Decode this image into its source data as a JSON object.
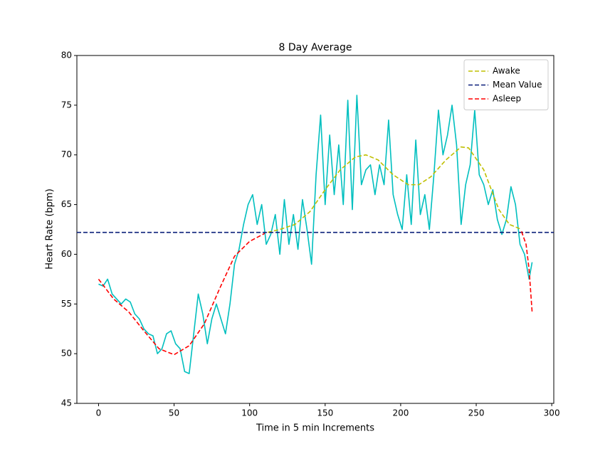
{
  "chart_data": {
    "type": "line",
    "title": "8 Day Average",
    "xlabel": "Time in 5 min Increments",
    "ylabel": "Heart Rate (bpm)",
    "xlim": [
      -14.35,
      301.35
    ],
    "ylim": [
      45,
      80
    ],
    "xticks": [
      0,
      50,
      100,
      150,
      200,
      250,
      300
    ],
    "yticks": [
      45,
      50,
      55,
      60,
      65,
      70,
      75,
      80
    ],
    "grid": false,
    "legend": "upper right",
    "series": [
      {
        "color": "#00bfbf",
        "style": "solid",
        "x": [
          0,
          3,
          6,
          9,
          12,
          15,
          18,
          21,
          24,
          27,
          30,
          33,
          36,
          39,
          42,
          45,
          48,
          51,
          54,
          57,
          60,
          63,
          66,
          69,
          72,
          75,
          78,
          81,
          84,
          87,
          90,
          93,
          96,
          99,
          102,
          105,
          108,
          111,
          114,
          117,
          120,
          123,
          126,
          129,
          132,
          135,
          138,
          141,
          144,
          147,
          150,
          153,
          156,
          159,
          162,
          165,
          168,
          171,
          174,
          177,
          180,
          183,
          186,
          189,
          192,
          195,
          198,
          201,
          204,
          207,
          210,
          213,
          216,
          219,
          222,
          225,
          228,
          231,
          234,
          237,
          240,
          243,
          246,
          249,
          252,
          255,
          258,
          261,
          264,
          267,
          270,
          273,
          276,
          279,
          282,
          285,
          287
        ],
        "values": [
          57.0,
          56.8,
          57.5,
          56.0,
          55.5,
          55.0,
          55.5,
          55.2,
          54.0,
          53.5,
          52.5,
          52.0,
          51.8,
          50.0,
          50.5,
          52.0,
          52.3,
          51.0,
          50.5,
          48.2,
          48.0,
          52.0,
          56.0,
          54.0,
          51.0,
          53.5,
          55.0,
          53.5,
          52.0,
          55.0,
          59.0,
          60.5,
          63.0,
          65.0,
          66.0,
          63.0,
          65.0,
          61.0,
          62.0,
          64.0,
          60.0,
          65.5,
          61.0,
          64.0,
          60.5,
          65.5,
          62.5,
          59.0,
          68.0,
          74.0,
          65.0,
          72.0,
          66.0,
          71.0,
          65.0,
          75.5,
          64.5,
          76.0,
          67.0,
          68.5,
          69.0,
          66.0,
          69.0,
          67.0,
          73.5,
          66.0,
          64.0,
          62.5,
          68.0,
          63.0,
          71.5,
          64.0,
          66.0,
          62.5,
          68.0,
          74.5,
          70.0,
          72.0,
          75.0,
          71.0,
          63.0,
          67.0,
          69.0,
          74.5,
          68.0,
          67.0,
          65.0,
          66.5,
          63.5,
          62.0,
          63.5,
          66.8,
          65.0,
          61.0,
          60.0,
          57.5,
          59.2
        ]
      },
      {
        "name": "Awake",
        "color": "#bfbf00",
        "style": "dashed",
        "x": [
          112,
          120,
          130,
          140,
          150,
          160,
          170,
          177,
          185,
          195,
          205,
          212,
          220,
          230,
          240,
          245,
          255,
          265,
          272,
          280
        ],
        "values": [
          62.2,
          62.5,
          63.0,
          64.3,
          66.5,
          68.5,
          69.8,
          70.0,
          69.5,
          68.0,
          67.0,
          67.0,
          67.8,
          69.5,
          70.8,
          70.7,
          68.5,
          64.5,
          63.0,
          62.5
        ]
      },
      {
        "name": "Mean Value",
        "color": "#0a1f7a",
        "style": "dashed",
        "y": 62.2
      },
      {
        "name": "Asleep",
        "color": "#ff0000",
        "style": "dashed",
        "x": [
          0,
          10,
          20,
          30,
          40,
          50,
          60,
          70,
          80,
          90,
          100,
          110,
          null,
          280,
          283,
          285,
          287
        ],
        "values": [
          57.5,
          55.5,
          54.2,
          52.3,
          50.5,
          49.9,
          50.8,
          53.0,
          56.5,
          59.8,
          61.3,
          62.1,
          null,
          62.3,
          61.0,
          58.5,
          54.2
        ]
      }
    ]
  }
}
